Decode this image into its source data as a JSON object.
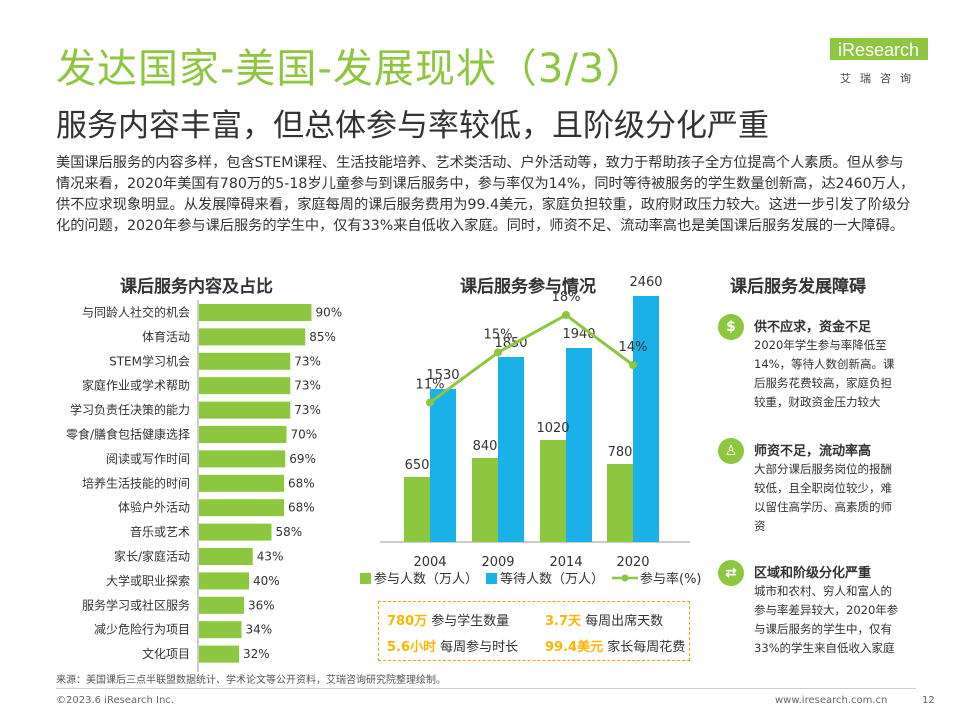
{
  "header": {
    "title": "发达国家-美国-发展现状（3/3）",
    "subtitle": "服务内容丰富，但总体参与率较低，且阶级分化严重",
    "logo_text": "iResearch",
    "logo_sub": "艾瑞咨询",
    "accent_color": "#8dc63f"
  },
  "intro": "美国课后服务的内容多样，包含STEM课程、生活技能培养、艺术类活动、户外活动等，致力于帮助孩子全方位提高个人素质。但从参与情况来看，2020年美国有780万的5-18岁儿童参与到课后服务中，参与率仅为14%，同时等待被服务的学生数量创新高，达2460万人，供不应求现象明显。从发展障碍来看，家庭每周的课后服务费用为99.4美元，家庭负担较重，政府财政压力较大。这进一步引发了阶级分化的问题，2020年参与课后服务的学生中，仅有33%来自低收入家庭。同时，师资不足、流动率高也是美国课后服务发展的一大障碍。",
  "chart_data": [
    {
      "type": "bar",
      "title": "课后服务内容及占比",
      "orientation": "horizontal",
      "categories": [
        "与同龄人社交的机会",
        "体育活动",
        "STEM学习机会",
        "家庭作业或学术帮助",
        "学习负责任决策的能力",
        "零食/膳食包括健康选择",
        "阅读或写作时间",
        "培养生活技能的时间",
        "体验户外活动",
        "音乐或艺术",
        "家长/家庭活动",
        "大学或职业探索",
        "服务学习或社区服务",
        "减少危险行为项目",
        "文化项目"
      ],
      "values": [
        90,
        85,
        73,
        73,
        73,
        70,
        69,
        68,
        68,
        58,
        43,
        40,
        36,
        34,
        32
      ],
      "value_labels": [
        "90%",
        "85%",
        "73%",
        "73%",
        "73%",
        "70%",
        "69%",
        "68%",
        "68%",
        "58%",
        "43%",
        "40%",
        "36%",
        "34%",
        "32%"
      ],
      "unit": "%",
      "xlim": [
        0,
        100
      ],
      "bar_color": "#8dc63f"
    },
    {
      "type": "bar",
      "title": "课后服务参与情况",
      "categories": [
        "2004",
        "2009",
        "2014",
        "2020"
      ],
      "series": [
        {
          "name": "参与人数（万人）",
          "values": [
            650,
            840,
            1020,
            780
          ],
          "color": "#8dc63f"
        },
        {
          "name": "等待人数（万人）",
          "values": [
            1530,
            1850,
            1940,
            2460
          ],
          "color": "#1ab0e8"
        }
      ],
      "line_series": {
        "name": "参与率(%)",
        "values": [
          11,
          15,
          18,
          14
        ],
        "labels": [
          "11%",
          "15%",
          "18%",
          "14%"
        ],
        "color": "#8dc63f"
      },
      "ylim": [
        0,
        2700
      ],
      "line_ylim": [
        0,
        40
      ],
      "legend": "bottom"
    }
  ],
  "summary": [
    {
      "value": "780万",
      "label": "参与学生数量"
    },
    {
      "value": "3.7天",
      "label": "每周出席天数"
    },
    {
      "value": "5.6小时",
      "label": "每周参与时长"
    },
    {
      "value": "99.4美元",
      "label": "家长每周花费"
    }
  ],
  "obstacles": {
    "title": "课后服务发展障碍",
    "items": [
      {
        "icon": "money-bag-icon",
        "title": "供不应求，资金不足",
        "text": "2020年学生参与率降低至14%，等待人数创新高。课后服务花费较高，家庭负担较重，财政资金压力较大"
      },
      {
        "icon": "teacher-icon",
        "title": "师资不足，流动率高",
        "text": "大部分课后服务岗位的报酬较低，且全职岗位较少，难以留住高学历、高素质的师资"
      },
      {
        "icon": "shuffle-icon",
        "title": "区域和阶级分化严重",
        "text": "城市和农村、穷人和富人的参与率差异较大，2020年参与课后服务的学生中，仅有33%的学生来自低收入家庭"
      }
    ]
  },
  "footer": {
    "source": "来源：美国课后三点半联盟数据统计、学术论文等公开资料，艾瑞咨询研究院整理绘制。",
    "copyright": "©2023.6 iResearch Inc.",
    "website": "www.iresearch.com.cn",
    "page": "12"
  }
}
